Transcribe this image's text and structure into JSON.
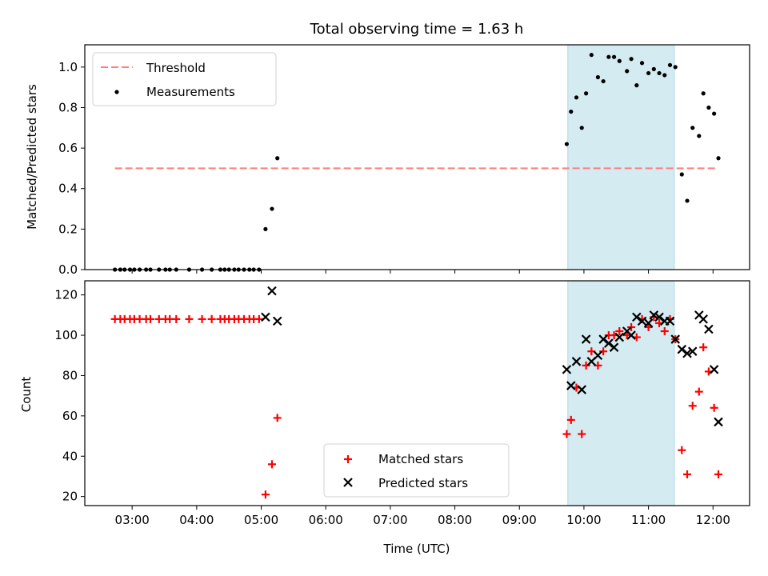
{
  "chart_data": [
    {
      "type": "scatter",
      "title": "Total observing time = 1.63 h",
      "xlabel": "",
      "ylabel": "Matched/Predicted stars",
      "ylim": [
        0,
        1.11
      ],
      "yticks": [
        "0.0",
        "0.2",
        "0.4",
        "0.6",
        "0.8",
        "1.0"
      ],
      "legend": {
        "position": "top-left",
        "entries": [
          "Threshold",
          "Measurements"
        ]
      },
      "threshold": {
        "name": "Threshold",
        "value": 0.5,
        "x_start": "02:44",
        "x_end": "12:04",
        "color": "#ff7f7f"
      },
      "highlight": {
        "x_start": "09:45",
        "x_end": "11:24",
        "color": "#d3ebf1"
      },
      "series": [
        {
          "name": "Measurements",
          "color": "#000000",
          "points": [
            [
              "02:44",
              0
            ],
            [
              "02:49",
              0
            ],
            [
              "02:53",
              0
            ],
            [
              "02:58",
              0
            ],
            [
              "03:02",
              0
            ],
            [
              "03:07",
              0
            ],
            [
              "03:13",
              0
            ],
            [
              "03:17",
              0
            ],
            [
              "03:25",
              0
            ],
            [
              "03:31",
              0
            ],
            [
              "03:35",
              0
            ],
            [
              "03:41",
              0
            ],
            [
              "03:53",
              0
            ],
            [
              "04:05",
              0
            ],
            [
              "04:14",
              0
            ],
            [
              "04:22",
              0
            ],
            [
              "04:26",
              0
            ],
            [
              "04:30",
              0
            ],
            [
              "04:35",
              0
            ],
            [
              "04:39",
              0
            ],
            [
              "04:44",
              0
            ],
            [
              "04:49",
              0
            ],
            [
              "04:53",
              0
            ],
            [
              "04:58",
              0
            ],
            [
              "05:04",
              0.2
            ],
            [
              "05:10",
              0.3
            ],
            [
              "05:15",
              0.55
            ],
            [
              "09:44",
              0.62
            ],
            [
              "09:48",
              0.78
            ],
            [
              "09:53",
              0.85
            ],
            [
              "09:58",
              0.7
            ],
            [
              "10:02",
              0.87
            ],
            [
              "10:07",
              1.06
            ],
            [
              "10:13",
              0.95
            ],
            [
              "10:18",
              0.93
            ],
            [
              "10:23",
              1.05
            ],
            [
              "10:28",
              1.05
            ],
            [
              "10:33",
              1.03
            ],
            [
              "10:40",
              0.98
            ],
            [
              "10:44",
              1.04
            ],
            [
              "10:49",
              0.91
            ],
            [
              "10:54",
              1.02
            ],
            [
              "11:00",
              0.97
            ],
            [
              "11:05",
              0.99
            ],
            [
              "11:10",
              0.97
            ],
            [
              "11:15",
              0.96
            ],
            [
              "11:20",
              1.01
            ],
            [
              "11:25",
              1.0
            ],
            [
              "11:31",
              0.47
            ],
            [
              "11:36",
              0.34
            ],
            [
              "11:41",
              0.7
            ],
            [
              "11:47",
              0.66
            ],
            [
              "11:51",
              0.87
            ],
            [
              "11:56",
              0.8
            ],
            [
              "12:01",
              0.77
            ],
            [
              "12:05",
              0.55
            ]
          ]
        }
      ]
    },
    {
      "type": "scatter",
      "title": "",
      "xlabel": "Time (UTC)",
      "ylabel": "Count",
      "ylim": [
        15.5,
        127
      ],
      "yticks": [
        "20",
        "40",
        "60",
        "80",
        "100",
        "120"
      ],
      "xticks": [
        "03:00",
        "04:00",
        "05:00",
        "06:00",
        "07:00",
        "08:00",
        "09:00",
        "10:00",
        "11:00",
        "12:00"
      ],
      "legend": {
        "position": "lower-center",
        "entries": [
          "Matched stars",
          "Predicted stars"
        ]
      },
      "highlight": {
        "x_start": "09:45",
        "x_end": "11:24",
        "color": "#d3ebf1"
      },
      "series": [
        {
          "name": "Matched stars",
          "marker": "plus",
          "color": "#ff0000",
          "points": [
            [
              "02:44",
              108
            ],
            [
              "02:49",
              108
            ],
            [
              "02:53",
              108
            ],
            [
              "02:58",
              108
            ],
            [
              "03:02",
              108
            ],
            [
              "03:07",
              108
            ],
            [
              "03:13",
              108
            ],
            [
              "03:17",
              108
            ],
            [
              "03:25",
              108
            ],
            [
              "03:31",
              108
            ],
            [
              "03:35",
              108
            ],
            [
              "03:41",
              108
            ],
            [
              "03:53",
              108
            ],
            [
              "04:05",
              108
            ],
            [
              "04:14",
              108
            ],
            [
              "04:22",
              108
            ],
            [
              "04:26",
              108
            ],
            [
              "04:30",
              108
            ],
            [
              "04:35",
              108
            ],
            [
              "04:39",
              108
            ],
            [
              "04:44",
              108
            ],
            [
              "04:49",
              108
            ],
            [
              "04:53",
              108
            ],
            [
              "04:58",
              108
            ],
            [
              "05:04",
              21
            ],
            [
              "05:10",
              36
            ],
            [
              "05:15",
              59
            ],
            [
              "09:44",
              51
            ],
            [
              "09:48",
              58
            ],
            [
              "09:53",
              74
            ],
            [
              "09:58",
              51
            ],
            [
              "10:02",
              85
            ],
            [
              "10:07",
              92
            ],
            [
              "10:13",
              85
            ],
            [
              "10:18",
              92
            ],
            [
              "10:23",
              100
            ],
            [
              "10:28",
              100
            ],
            [
              "10:33",
              102
            ],
            [
              "10:40",
              100
            ],
            [
              "10:44",
              104
            ],
            [
              "10:49",
              99
            ],
            [
              "10:54",
              108
            ],
            [
              "11:00",
              104
            ],
            [
              "11:05",
              109
            ],
            [
              "11:10",
              106
            ],
            [
              "11:15",
              102
            ],
            [
              "11:20",
              108
            ],
            [
              "11:25",
              98
            ],
            [
              "11:31",
              43
            ],
            [
              "11:36",
              31
            ],
            [
              "11:41",
              65
            ],
            [
              "11:47",
              72
            ],
            [
              "11:51",
              94
            ],
            [
              "11:56",
              82
            ],
            [
              "12:01",
              64
            ],
            [
              "12:05",
              31
            ]
          ]
        },
        {
          "name": "Predicted stars",
          "marker": "x",
          "color": "#000000",
          "points": [
            [
              "05:04",
              109
            ],
            [
              "05:10",
              122
            ],
            [
              "05:15",
              107
            ],
            [
              "09:44",
              83
            ],
            [
              "09:48",
              75
            ],
            [
              "09:53",
              87
            ],
            [
              "09:58",
              73
            ],
            [
              "10:02",
              98
            ],
            [
              "10:07",
              87
            ],
            [
              "10:13",
              90
            ],
            [
              "10:18",
              98
            ],
            [
              "10:23",
              96
            ],
            [
              "10:28",
              94
            ],
            [
              "10:33",
              99
            ],
            [
              "10:40",
              102
            ],
            [
              "10:44",
              100
            ],
            [
              "10:49",
              109
            ],
            [
              "10:54",
              107
            ],
            [
              "11:00",
              106
            ],
            [
              "11:05",
              110
            ],
            [
              "11:10",
              109
            ],
            [
              "11:15",
              107
            ],
            [
              "11:20",
              107
            ],
            [
              "11:25",
              98
            ],
            [
              "11:31",
              93
            ],
            [
              "11:36",
              91
            ],
            [
              "11:41",
              92
            ],
            [
              "11:47",
              110
            ],
            [
              "11:51",
              108
            ],
            [
              "11:56",
              103
            ],
            [
              "12:01",
              83
            ],
            [
              "12:05",
              57
            ]
          ]
        }
      ]
    }
  ]
}
